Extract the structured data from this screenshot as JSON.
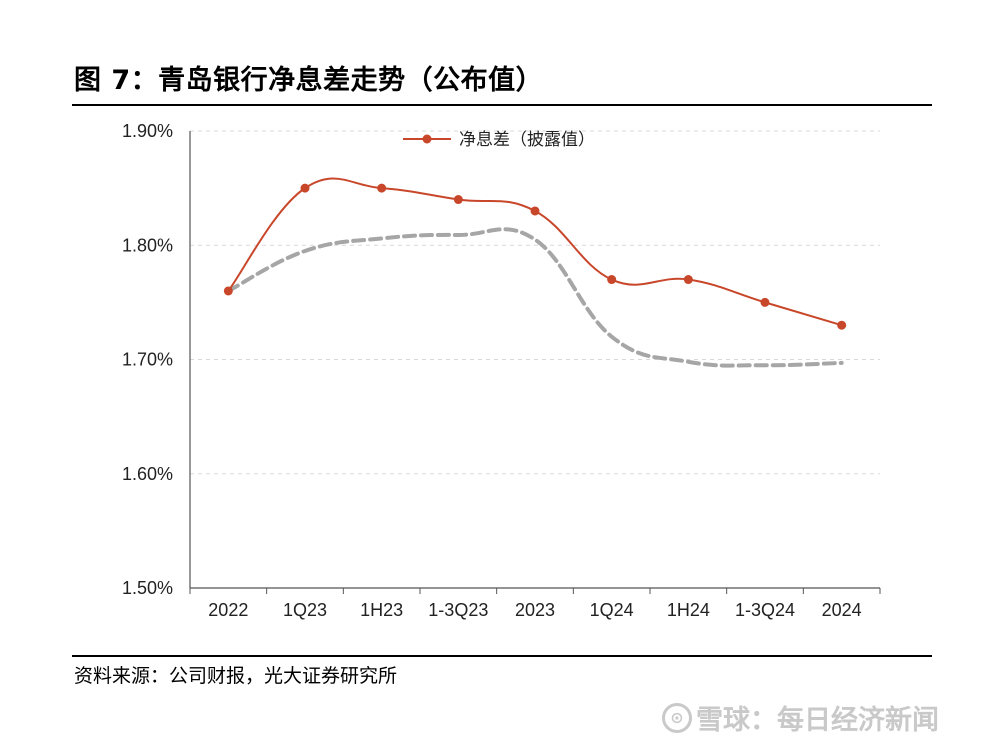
{
  "figure": {
    "title": "图 7：青岛银行净息差走势（公布值）",
    "source": "资料来源：公司财报，光大证券研究所"
  },
  "watermark": {
    "logo": "⊙",
    "text": "雪球：每日经济新闻"
  },
  "colors": {
    "series": "#c8472a",
    "trend": "#a6a6a6",
    "grid": "#d9d9d9",
    "axis": "#555555"
  },
  "chart_data": {
    "type": "line",
    "title": "",
    "xlabel": "",
    "ylabel": "",
    "categories": [
      "2022",
      "1Q23",
      "1H23",
      "1-3Q23",
      "2023",
      "1Q24",
      "1H24",
      "1-3Q24",
      "2024"
    ],
    "y_ticks": [
      "1.90%",
      "1.80%",
      "1.70%",
      "1.60%",
      "1.50%"
    ],
    "ylim": [
      1.5,
      1.9
    ],
    "grid": "horizontal-dashed",
    "legend_position": "top-center",
    "series": [
      {
        "name": "净息差（披露值）",
        "values": [
          1.76,
          1.85,
          1.85,
          1.84,
          1.83,
          1.77,
          1.77,
          1.75,
          1.73
        ],
        "style": "smooth-line-with-markers"
      },
      {
        "name": "",
        "values": [
          1.76,
          1.795,
          1.806,
          1.809,
          1.805,
          1.72,
          1.698,
          1.695,
          1.697
        ],
        "style": "dashed-trend"
      }
    ]
  }
}
